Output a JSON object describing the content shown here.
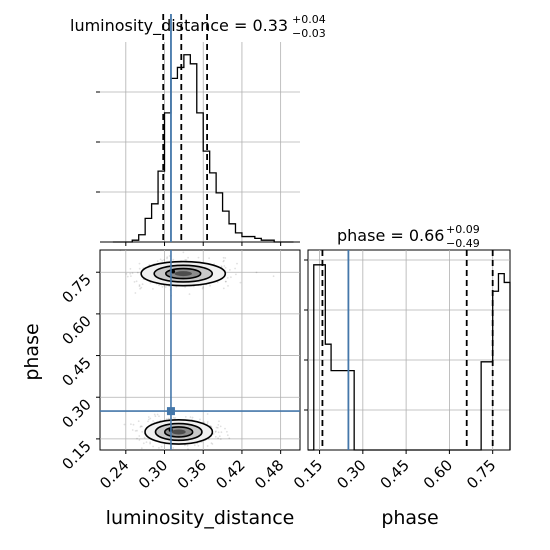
{
  "chart_data": {
    "type": "corner",
    "parameters": [
      "luminosity_distance",
      "phase"
    ],
    "truth_color": "#4477aa",
    "marginals": [
      {
        "parameter": "luminosity_distance",
        "title": {
          "base": "luminosity_distance = 0.33",
          "plus": "+0.04",
          "minus": "−0.03"
        },
        "quantiles": [
          0.298,
          0.326,
          0.366
        ],
        "truth": 0.31,
        "bin_edges": [
          0.22,
          0.23,
          0.24,
          0.25,
          0.26,
          0.27,
          0.28,
          0.29,
          0.3,
          0.31,
          0.32,
          0.33,
          0.34,
          0.35,
          0.36,
          0.37,
          0.38,
          0.39,
          0.4,
          0.41,
          0.42,
          0.43,
          0.44,
          0.45,
          0.46,
          0.47,
          0.48,
          0.49,
          0.5
        ],
        "counts": [
          0,
          0,
          0,
          1,
          4,
          13,
          21,
          39,
          71,
          90,
          96,
          103,
          98,
          71,
          50,
          38,
          27,
          17,
          10,
          5,
          3,
          3,
          2,
          1,
          1,
          0,
          0,
          0
        ],
        "ylim": [
          0,
          110
        ]
      },
      {
        "parameter": "phase",
        "title": {
          "base": "phase = 0.66",
          "plus": "+0.09",
          "minus": "−0.49"
        },
        "quantiles": [
          0.16,
          0.66,
          0.75
        ],
        "truth": 0.25,
        "bin_edges": [
          0.11,
          0.13,
          0.15,
          0.17,
          0.19,
          0.21,
          0.23,
          0.25,
          0.27,
          0.29,
          0.31,
          0.33,
          0.35,
          0.37,
          0.39,
          0.41,
          0.43,
          0.45,
          0.47,
          0.49,
          0.51,
          0.53,
          0.55,
          0.57,
          0.59,
          0.61,
          0.63,
          0.65,
          0.67,
          0.69,
          0.71,
          0.73,
          0.75,
          0.77,
          0.79,
          0.81
        ],
        "counts": [
          0,
          21,
          21,
          12,
          9,
          9,
          9,
          9,
          0,
          0,
          0,
          0,
          0,
          0,
          0,
          0,
          0,
          0,
          0,
          0,
          0,
          0,
          0,
          0,
          0,
          0,
          0,
          0,
          0,
          0,
          10,
          10,
          18,
          20,
          19,
          0
        ],
        "ylim": [
          0,
          22
        ]
      }
    ],
    "joint": {
      "x": "luminosity_distance",
      "y": "phase",
      "modes": [
        {
          "center": [
            0.329,
            0.745
          ],
          "spread": [
            0.045,
            0.03
          ],
          "label": "upper"
        },
        {
          "center": [
            0.322,
            0.175
          ],
          "spread": [
            0.036,
            0.03
          ],
          "label": "lower"
        }
      ],
      "truth": [
        0.31,
        0.25
      ]
    },
    "xlim_luminosity_distance": [
      0.2,
      0.51
    ],
    "ylim_phase": [
      0.11,
      0.83
    ],
    "xlim_phase": [
      0.11,
      0.81
    ],
    "ticks_luminosity_distance": [
      "0.24",
      "0.30",
      "0.36",
      "0.42",
      "0.48"
    ],
    "ticks_phase": [
      "0.15",
      "0.30",
      "0.45",
      "0.60",
      "0.75"
    ],
    "xlabel_left": "luminosity_distance",
    "xlabel_right": "phase",
    "ylabel": "phase"
  }
}
